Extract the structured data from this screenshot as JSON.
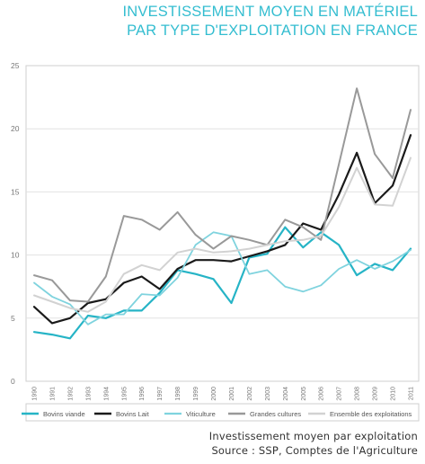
{
  "title": {
    "line1": "INVESTISSEMENT MOYEN EN MATÉRIEL",
    "line2": "PAR TYPE D'EXPLOITATION EN FRANCE"
  },
  "source": {
    "line1": "Investissement moyen par exploitation",
    "line2": "Source : SSP, Comptes de l'Agriculture"
  },
  "chart_data": {
    "type": "line",
    "x": [
      "1990",
      "1991",
      "1992",
      "1993",
      "1994",
      "1995",
      "1996",
      "1997",
      "1998",
      "1999",
      "2000",
      "2001",
      "2002",
      "2003",
      "2004",
      "2005",
      "2006",
      "2007",
      "2008",
      "2009",
      "2010",
      "2011"
    ],
    "ylim": [
      0,
      25
    ],
    "yticks": [
      "0",
      "5",
      "10",
      "15",
      "20",
      "25"
    ],
    "grid": true,
    "legend_position": "bottom",
    "series": [
      {
        "name": "Bovins viande",
        "color": "#26b4c6",
        "width": 2.2,
        "values": [
          3.9,
          3.7,
          3.4,
          5.2,
          5.0,
          5.6,
          5.6,
          7.0,
          8.8,
          8.5,
          8.1,
          6.2,
          9.8,
          10.1,
          12.2,
          10.6,
          11.8,
          10.8,
          8.4,
          9.3,
          8.8,
          10.5
        ]
      },
      {
        "name": "Bovins Lait",
        "color": "#1a1a1a",
        "width": 2.2,
        "values": [
          5.9,
          4.6,
          5.0,
          6.2,
          6.5,
          7.8,
          8.3,
          7.3,
          8.9,
          9.6,
          9.6,
          9.5,
          9.9,
          10.3,
          10.8,
          12.5,
          12.0,
          14.8,
          18.1,
          14.1,
          15.5,
          19.5
        ]
      },
      {
        "name": "Viticulture",
        "color": "#7fd3de",
        "width": 1.8,
        "values": [
          7.8,
          6.7,
          6.1,
          4.5,
          5.3,
          5.3,
          6.9,
          6.8,
          8.2,
          10.8,
          11.8,
          11.5,
          8.5,
          8.8,
          7.5,
          7.1,
          7.6,
          8.9,
          9.6,
          8.9,
          9.5,
          10.4
        ]
      },
      {
        "name": "Grandes cultures",
        "color": "#999999",
        "width": 2.0,
        "values": [
          8.4,
          8.0,
          6.4,
          6.3,
          8.3,
          13.1,
          12.8,
          12.0,
          13.4,
          11.6,
          10.5,
          11.5,
          11.2,
          10.8,
          12.8,
          12.2,
          11.2,
          17.2,
          23.2,
          18.0,
          16.1,
          21.5
        ]
      },
      {
        "name": "Ensemble des exploitations",
        "color": "#d2d2d2",
        "width": 2.0,
        "values": [
          6.8,
          6.3,
          5.8,
          5.5,
          6.3,
          8.5,
          9.2,
          8.8,
          10.2,
          10.5,
          10.2,
          10.3,
          10.5,
          10.8,
          11.1,
          11.2,
          11.5,
          13.8,
          16.9,
          14.0,
          13.9,
          17.7
        ]
      }
    ]
  }
}
